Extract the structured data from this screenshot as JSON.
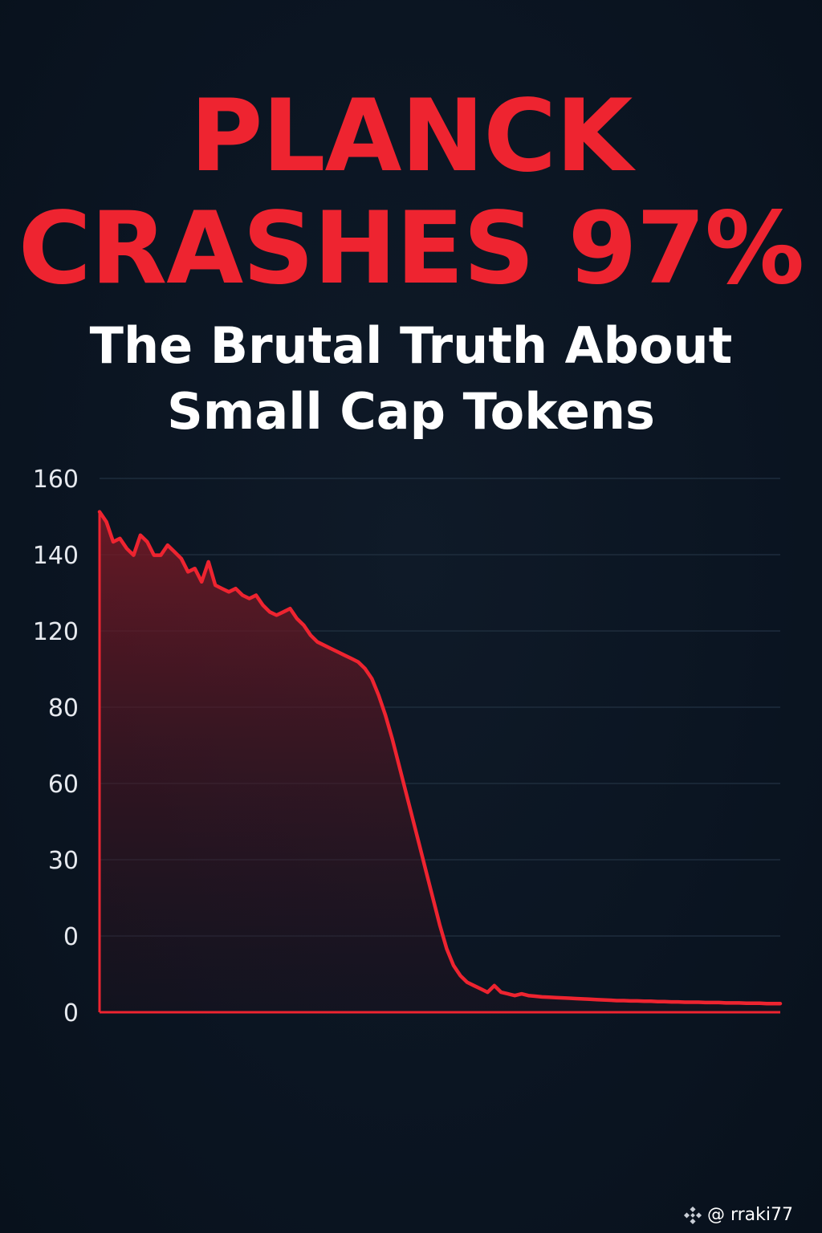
{
  "header": {
    "title_line1": "PLANCK",
    "title_line2": "CRASHES 97%",
    "subtitle_line1": "The Brutal Truth About",
    "subtitle_line2": "Small Cap Tokens"
  },
  "colors": {
    "accent": "#ee2430",
    "background": "#0b1522",
    "text": "#ffffff",
    "grid": "#1e2d3d",
    "tick_text": "#e6e9ee"
  },
  "watermark": {
    "icon": "binance-logo-icon",
    "handle": "@ rraki77"
  },
  "chart_data": {
    "type": "area",
    "ytick_labels": [
      "160",
      "140",
      "120",
      "80",
      "60",
      "30",
      "0",
      "0"
    ],
    "grid": true,
    "legend": "none",
    "series": [
      {
        "values": [
          150,
          147,
          141,
          142,
          139,
          137,
          143,
          141,
          137,
          137,
          140,
          138,
          136,
          132,
          133,
          129,
          135,
          128,
          127,
          126,
          127,
          125,
          124,
          125,
          122,
          120,
          119,
          120,
          121,
          118,
          116,
          113,
          111,
          110,
          109,
          108,
          107,
          106,
          105,
          103,
          100,
          95,
          89,
          82,
          74,
          66,
          58,
          50,
          42,
          34,
          26,
          19,
          14,
          11,
          9,
          8,
          7,
          6,
          8,
          6,
          5.5,
          5,
          5.5,
          5,
          4.8,
          4.6,
          4.5,
          4.4,
          4.3,
          4.2,
          4.1,
          4.0,
          3.9,
          3.8,
          3.7,
          3.6,
          3.5,
          3.5,
          3.4,
          3.4,
          3.3,
          3.3,
          3.2,
          3.2,
          3.1,
          3.1,
          3.0,
          3.0,
          3.0,
          2.9,
          2.9,
          2.9,
          2.8,
          2.8,
          2.8,
          2.7,
          2.7,
          2.7,
          2.6,
          2.6,
          2.6
        ]
      }
    ]
  }
}
